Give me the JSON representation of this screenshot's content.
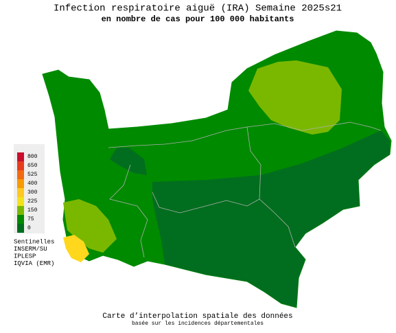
{
  "header": {
    "title": "Infection respiratoire aiguë (IRA) Semaine 2025s21",
    "subtitle": "en nombre de cas pour 100 000 habitants"
  },
  "legend": {
    "ticks": [
      {
        "value": 800,
        "color": "#c8102e"
      },
      {
        "value": 650,
        "color": "#e63c1e"
      },
      {
        "value": 525,
        "color": "#f26a12"
      },
      {
        "value": 400,
        "color": "#f79a06"
      },
      {
        "value": 300,
        "color": "#ffc820"
      },
      {
        "value": 225,
        "color": "#f2e21c"
      },
      {
        "value": 150,
        "color": "#7ab800"
      },
      {
        "value": 75,
        "color": "#008a00"
      },
      {
        "value": 0,
        "color": "#006e1e"
      }
    ]
  },
  "sources": [
    "Sentinelles",
    "INSERM/SU",
    "IPLESP",
    "IQVIA (EMR)"
  ],
  "footer": {
    "line1": "Carte d’interpolation spatiale des données",
    "line2": "basée sur les incidences départementales"
  }
}
